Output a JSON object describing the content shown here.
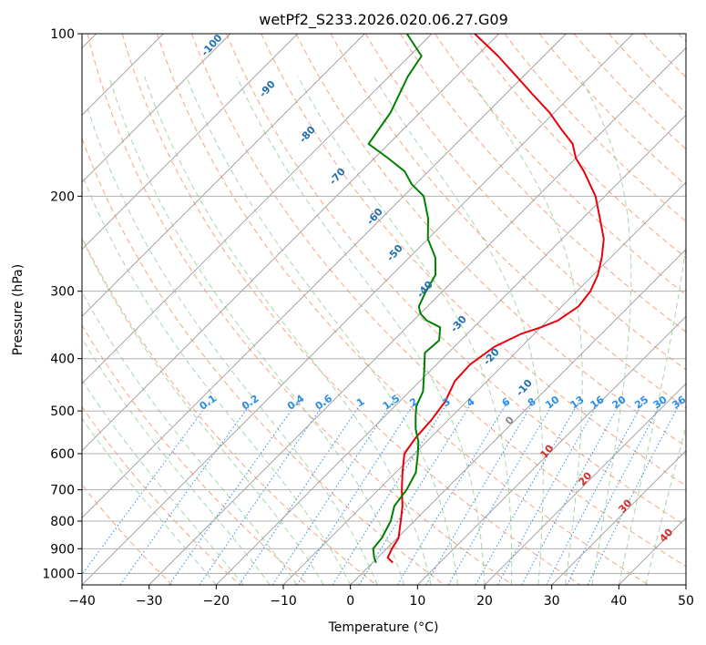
{
  "chart_data": {
    "type": "line",
    "title": "wetPf2_S233.2026.020.06.27.G09",
    "xlabel": "Temperature (°C)",
    "ylabel": "Pressure (hPa)",
    "xlim": [
      -40,
      50
    ],
    "ylim": [
      1050,
      100
    ],
    "x_ticks": [
      "−40",
      "−30",
      "−20",
      "−10",
      "0",
      "10",
      "20",
      "30",
      "40",
      "50"
    ],
    "y_ticks": [
      "100",
      "200",
      "300",
      "400",
      "500",
      "600",
      "700",
      "800",
      "900",
      "1000"
    ],
    "y_scale": "log",
    "grid": true,
    "colors": {
      "temperature": "#e8000b",
      "dewpoint": "#008000",
      "isotherm": "#9a9a9a",
      "dry_adiabat": "#f4a582",
      "moist_adiabat": "#a6d8a6",
      "mixing_ratio": "#2a8ee8",
      "dry_label": "#1f6fb0",
      "moist_label": "#d62728"
    },
    "series": [
      {
        "key": "temperature",
        "p": [
          955,
          935,
          900,
          860,
          800,
          750,
          700,
          650,
          600,
          560,
          520,
          480,
          440,
          410,
          380,
          360,
          350,
          340,
          320,
          300,
          280,
          260,
          240,
          220,
          200,
          180,
          170,
          160,
          150,
          140,
          130,
          120,
          110,
          100
        ],
        "t": [
          3.0,
          1.5,
          0.8,
          0.2,
          -2.0,
          -4.0,
          -6.5,
          -9.0,
          -11.5,
          -12.2,
          -12.5,
          -13.2,
          -14.8,
          -15.0,
          -14.0,
          -12.0,
          -10.0,
          -8.5,
          -7.5,
          -8.0,
          -9.3,
          -11.3,
          -13.8,
          -17.4,
          -21.4,
          -26.8,
          -30.0,
          -32.6,
          -36.6,
          -40.7,
          -45.7,
          -51.0,
          -56.8,
          -63.6
        ]
      },
      {
        "key": "dewpoint",
        "p": [
          955,
          935,
          900,
          860,
          800,
          750,
          700,
          650,
          600,
          570,
          540,
          510,
          490,
          460,
          420,
          390,
          370,
          350,
          340,
          330,
          320,
          300,
          280,
          260,
          240,
          220,
          200,
          190,
          180,
          170,
          160,
          140,
          120,
          110,
          100
        ],
        "t": [
          0.5,
          -0.5,
          -2.0,
          -2.3,
          -3.5,
          -5.2,
          -5.8,
          -7.0,
          -9.5,
          -11.2,
          -13.5,
          -15.5,
          -16.8,
          -18.0,
          -21.0,
          -23.5,
          -23.2,
          -25.0,
          -28.0,
          -30.0,
          -31.3,
          -32.5,
          -33.5,
          -36.1,
          -40.0,
          -43.0,
          -47.0,
          -50.6,
          -53.5,
          -58.0,
          -63.0,
          -64.4,
          -67.2,
          -68.2,
          -73.7
        ]
      }
    ],
    "dry_adiabat_labels": [
      "-100",
      "-90",
      "-80",
      "-70",
      "-60",
      "-50",
      "-40",
      "-30",
      "-20",
      "-10"
    ],
    "mixing_ratio_labels": [
      "0.1",
      "0.2",
      "0.4",
      "0.6",
      "1",
      "1.5",
      "2",
      "3",
      "4",
      "6",
      "8",
      "10",
      "13",
      "16",
      "20",
      "25",
      "30",
      "36"
    ],
    "moist_adiabat_labels": [
      "0",
      "10",
      "20",
      "30",
      "40"
    ]
  }
}
